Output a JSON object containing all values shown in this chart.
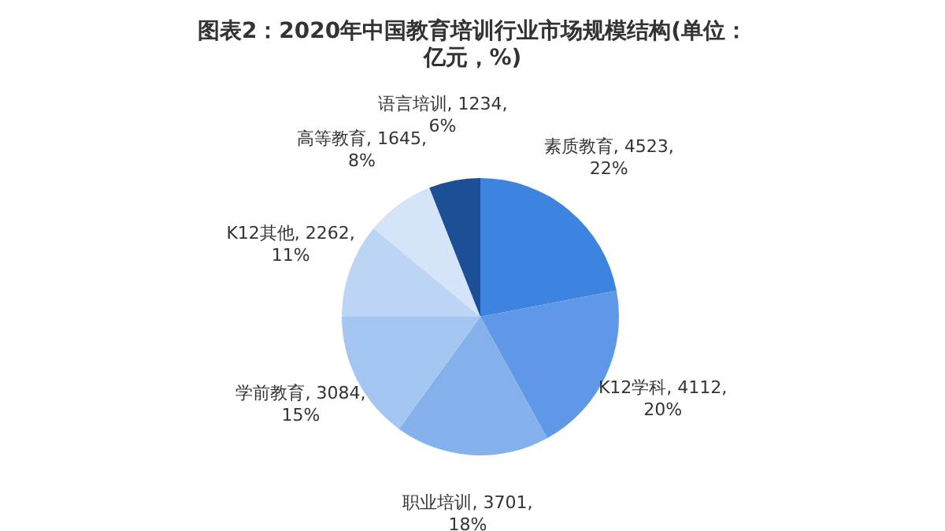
{
  "chart_data": {
    "type": "pie",
    "title": "图表2：2020年中国教育培训行业市场规模结构(单位：亿元，%)",
    "categories": [
      "素质教育",
      "K12学科",
      "职业培训",
      "学前教育",
      "K12其他",
      "高等教育",
      "语言培训"
    ],
    "values": [
      4523,
      4112,
      3701,
      3084,
      2262,
      1645,
      1234
    ],
    "value_labels": [
      "4523, 22%",
      "4112, 20%",
      "3701, 18%",
      "3084, 15%",
      "2262, 11%",
      "1645, 8%",
      "1234, 6%"
    ],
    "colors": [
      "#3d84e0",
      "#5e98e6",
      "#84b0ec",
      "#a6c6f2",
      "#bdd5f5",
      "#d5e4f8",
      "#1c4f96"
    ],
    "legend": false
  }
}
